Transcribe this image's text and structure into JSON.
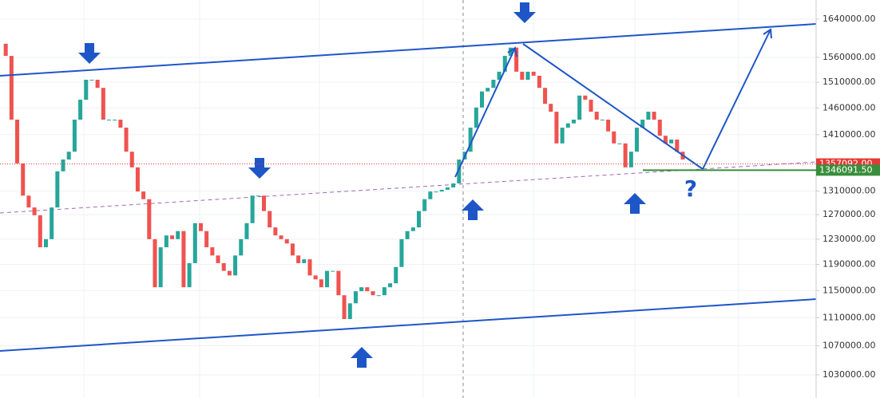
{
  "chart_data": {
    "type": "candlestick",
    "log_scale": true,
    "grid": true,
    "up_color": "#26a69a",
    "down_color": "#ef5350",
    "values": [
      1588000,
      1563000,
      1438000,
      1358000,
      1302000,
      1282000,
      1269000,
      1217000,
      1230000,
      1282000,
      1344000,
      1365000,
      1379000,
      1438000,
      1476000,
      1515000,
      1515000,
      1499000,
      1438000,
      1438000,
      1438000,
      1423000,
      1379000,
      1351000,
      1309000,
      1296000,
      1230000,
      1155000,
      1217000,
      1236000,
      1230000,
      1243000,
      1155000,
      1192000,
      1256000,
      1243000,
      1217000,
      1204000,
      1192000,
      1180000,
      1173000,
      1204000,
      1230000,
      1256000,
      1302000,
      1302000,
      1276000,
      1249000,
      1236000,
      1230000,
      1223000,
      1204000,
      1192000,
      1198000,
      1173000,
      1167000,
      1155000,
      1180000,
      1180000,
      1143000,
      1108000,
      1131000,
      1149000,
      1155000,
      1149000,
      1143000,
      1143000,
      1155000,
      1161000,
      1186000,
      1230000,
      1243000,
      1249000,
      1276000,
      1296000,
      1309000,
      1309000,
      1312000,
      1316000,
      1323000,
      1365000,
      1379000,
      1423000,
      1461000,
      1492000,
      1499000,
      1515000,
      1531000,
      1563000,
      1580000,
      1531000,
      1515000,
      1531000,
      1523000,
      1499000,
      1468000,
      1453000,
      1394000,
      1423000,
      1431000,
      1438000,
      1484000,
      1476000,
      1453000,
      1438000,
      1438000,
      1416000,
      1394000,
      1394000,
      1351000,
      1379000,
      1423000,
      1438000,
      1453000,
      1438000,
      1408000,
      1394000,
      1401000,
      1379000,
      1365000
    ],
    "ylim": [
      999300,
      1681500
    ],
    "yticks": [
      {
        "value": 1030000,
        "label": "1030000.00"
      },
      {
        "value": 1070000,
        "label": "1070000.00"
      },
      {
        "value": 1110000,
        "label": "1110000.00"
      },
      {
        "value": 1150000,
        "label": "1150000.00"
      },
      {
        "value": 1190000,
        "label": "1190000.00"
      },
      {
        "value": 1230000,
        "label": "1230000.00"
      },
      {
        "value": 1270000,
        "label": "1270000.00"
      },
      {
        "value": 1310000,
        "label": "1310000.00"
      },
      {
        "value": 1410000,
        "label": "1410000.00"
      },
      {
        "value": 1460000,
        "label": "1460000.00"
      },
      {
        "value": 1510000,
        "label": "1510000.00"
      },
      {
        "value": 1560000,
        "label": "1560000.00"
      },
      {
        "value": 1640000,
        "label": "1640000.00"
      }
    ],
    "price_lines": [
      {
        "value": 1357092,
        "label": "1357092.00",
        "color": "#e53935"
      },
      {
        "value": 1346091.5,
        "label": "1346091.50",
        "color": "#388e3c"
      }
    ],
    "annotation": "?"
  }
}
